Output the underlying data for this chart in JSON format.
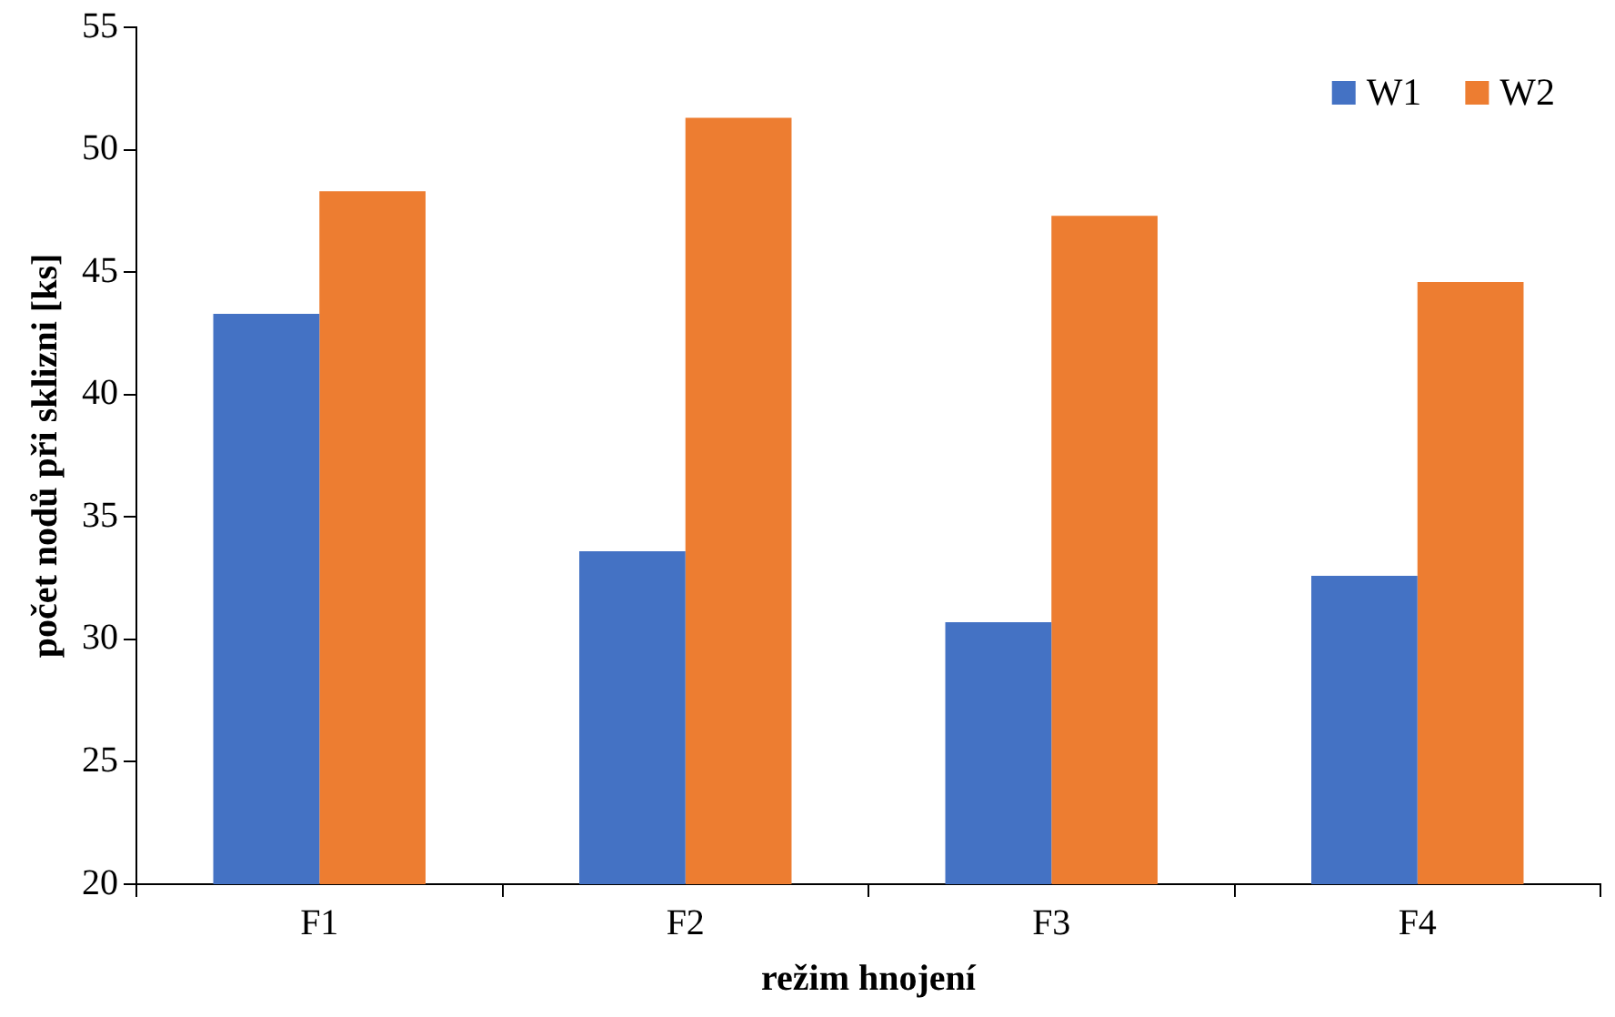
{
  "chart_data": {
    "type": "bar",
    "xlabel": "režim hnojení",
    "ylabel": "počet nodů při sklizni [ks]",
    "categories": [
      "F1",
      "F2",
      "F3",
      "F4"
    ],
    "series": [
      {
        "name": "W1",
        "color": "#4472c4",
        "values": [
          43.3,
          33.6,
          30.7,
          32.6
        ]
      },
      {
        "name": "W2",
        "color": "#ed7d31",
        "values": [
          48.3,
          51.3,
          47.3,
          44.6
        ]
      }
    ],
    "ylim": [
      20,
      55
    ],
    "yticks": [
      20,
      25,
      30,
      35,
      40,
      45,
      50,
      55
    ],
    "grid": false,
    "legend": "top right"
  }
}
